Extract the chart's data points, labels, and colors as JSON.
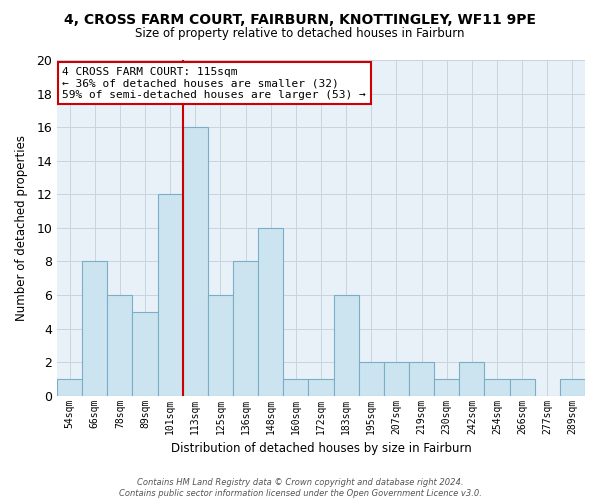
{
  "title1": "4, CROSS FARM COURT, FAIRBURN, KNOTTINGLEY, WF11 9PE",
  "title2": "Size of property relative to detached houses in Fairburn",
  "xlabel": "Distribution of detached houses by size in Fairburn",
  "ylabel": "Number of detached properties",
  "bin_labels": [
    "54sqm",
    "66sqm",
    "78sqm",
    "89sqm",
    "101sqm",
    "113sqm",
    "125sqm",
    "136sqm",
    "148sqm",
    "160sqm",
    "172sqm",
    "183sqm",
    "195sqm",
    "207sqm",
    "219sqm",
    "230sqm",
    "242sqm",
    "254sqm",
    "266sqm",
    "277sqm",
    "289sqm"
  ],
  "bar_values": [
    1,
    8,
    6,
    5,
    12,
    16,
    6,
    8,
    10,
    1,
    1,
    6,
    2,
    2,
    2,
    1,
    2,
    1,
    1,
    0,
    1
  ],
  "bar_color": "#cce4f0",
  "bar_edge_color": "#7aaec8",
  "vline_color": "#cc0000",
  "vline_index": 5,
  "ylim": [
    0,
    20
  ],
  "yticks": [
    0,
    2,
    4,
    6,
    8,
    10,
    12,
    14,
    16,
    18,
    20
  ],
  "ann_line1": "4 CROSS FARM COURT: 115sqm",
  "ann_line2": "← 36% of detached houses are smaller (32)",
  "ann_line3": "59% of semi-detached houses are larger (53) →",
  "footer_line1": "Contains HM Land Registry data © Crown copyright and database right 2024.",
  "footer_line2": "Contains public sector information licensed under the Open Government Licence v3.0.",
  "bg_color": "#ffffff",
  "plot_bg_color": "#e8f0f8",
  "grid_color": "#c8d4e0"
}
